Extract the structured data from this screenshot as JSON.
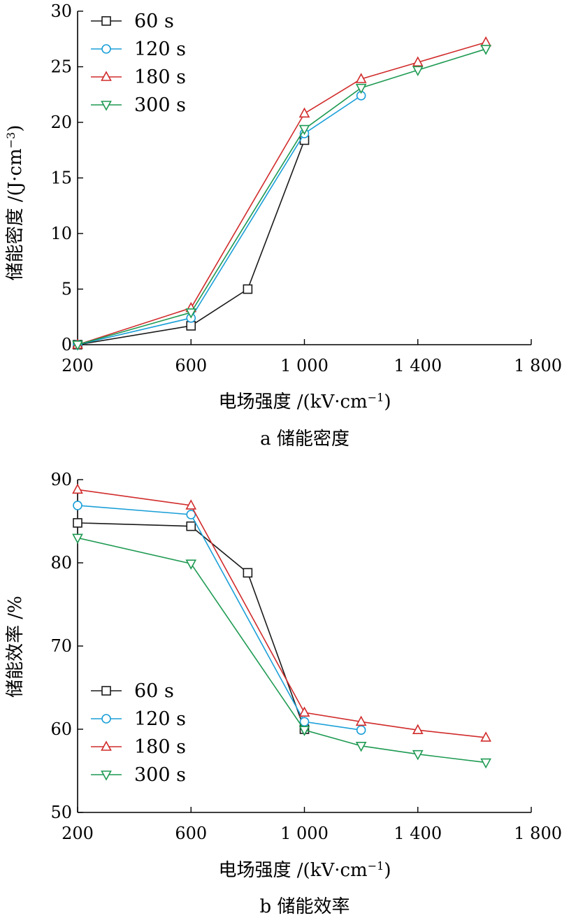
{
  "colors": {
    "s60": "#1a1a1a",
    "s120": "#1a9fd8",
    "s180": "#d12b2b",
    "s300": "#1e9a52"
  },
  "chart_data": [
    {
      "panel": "a",
      "type": "line",
      "caption": "a 储能密度",
      "xlabel": "电场强度 /(kV·cm",
      "xlabel_sup": "−1",
      "xlabel_end": ")",
      "ylabel": "储能密度 /(J·cm",
      "ylabel_sup": "−3",
      "ylabel_end": ")",
      "xlim": [
        200,
        1800
      ],
      "ylim": [
        0,
        30
      ],
      "xticks": [
        200,
        600,
        1000,
        1400,
        1800
      ],
      "xtick_labels": [
        "200",
        "600",
        "1 000",
        "1 400",
        "1 800"
      ],
      "yticks": [
        0,
        5,
        10,
        15,
        20,
        25,
        30
      ],
      "ytick_labels": [
        "0",
        "5",
        "10",
        "15",
        "20",
        "25",
        "30"
      ],
      "legend_position": "top-left",
      "series": [
        {
          "name": "60 s",
          "marker": "square",
          "color": "s60",
          "x": [
            200,
            600,
            800,
            1000
          ],
          "y": [
            0,
            1.7,
            5.0,
            18.4
          ]
        },
        {
          "name": "120 s",
          "marker": "circle",
          "color": "s120",
          "x": [
            200,
            600,
            1000,
            1200
          ],
          "y": [
            0,
            2.4,
            19.0,
            22.4
          ]
        },
        {
          "name": "180 s",
          "marker": "triangle-up",
          "color": "s180",
          "x": [
            200,
            600,
            1000,
            1200,
            1400,
            1640
          ],
          "y": [
            0,
            3.3,
            20.8,
            23.9,
            25.4,
            27.2
          ]
        },
        {
          "name": "300 s",
          "marker": "triangle-down",
          "color": "s300",
          "x": [
            200,
            600,
            1000,
            1200,
            1400,
            1640
          ],
          "y": [
            0,
            2.9,
            19.4,
            23.1,
            24.7,
            26.6
          ]
        }
      ]
    },
    {
      "panel": "b",
      "type": "line",
      "caption": "b 储能效率",
      "xlabel": "电场强度 /(kV·cm",
      "xlabel_sup": "−1",
      "xlabel_end": ")",
      "ylabel": "储能效率 /%",
      "xlim": [
        200,
        1800
      ],
      "ylim": [
        50,
        90
      ],
      "xticks": [
        200,
        600,
        1000,
        1400,
        1800
      ],
      "xtick_labels": [
        "200",
        "600",
        "1 000",
        "1 400",
        "1 800"
      ],
      "yticks": [
        50,
        60,
        70,
        80,
        90
      ],
      "ytick_labels": [
        "50",
        "60",
        "70",
        "80",
        "90"
      ],
      "legend_position": "bottom-left",
      "series": [
        {
          "name": "60 s",
          "marker": "square",
          "color": "s60",
          "x": [
            200,
            600,
            800,
            1000
          ],
          "y": [
            84.8,
            84.4,
            78.8,
            60.0
          ]
        },
        {
          "name": "120 s",
          "marker": "circle",
          "color": "s120",
          "x": [
            200,
            600,
            1000,
            1200
          ],
          "y": [
            86.9,
            85.8,
            60.9,
            59.9
          ]
        },
        {
          "name": "180 s",
          "marker": "triangle-up",
          "color": "s180",
          "x": [
            200,
            600,
            1000,
            1200,
            1400,
            1640
          ],
          "y": [
            88.8,
            86.9,
            62.0,
            60.9,
            59.9,
            59.0
          ]
        },
        {
          "name": "300 s",
          "marker": "triangle-down",
          "color": "s300",
          "x": [
            200,
            600,
            1000,
            1200,
            1400,
            1640
          ],
          "y": [
            83.0,
            79.9,
            59.9,
            58.0,
            57.0,
            56.0
          ]
        }
      ]
    }
  ]
}
